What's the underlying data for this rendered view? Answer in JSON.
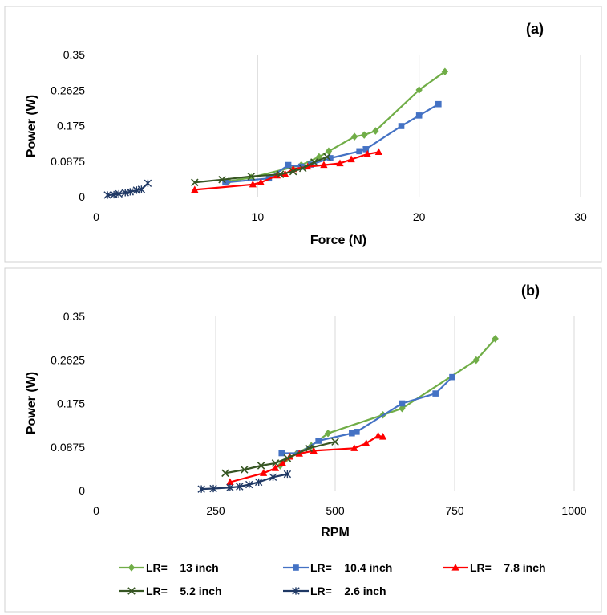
{
  "chart_data": [
    {
      "type": "line",
      "panel_label": "(a)",
      "xlabel": "Force (N)",
      "ylabel": "Power (W)",
      "xlim": [
        0,
        30
      ],
      "ylim": [
        0,
        0.35
      ],
      "x_ticks": [
        "0",
        "10",
        "20",
        "30"
      ],
      "y_ticks": [
        "0",
        "0.0875",
        "0.175",
        "0.2625",
        "0.35"
      ],
      "grid": "vertical",
      "series": [
        {
          "key": "lr13",
          "points": [
            [
              8.2,
              0.038
            ],
            [
              9.6,
              0.047
            ],
            [
              12.7,
              0.078
            ],
            [
              13.8,
              0.098
            ],
            [
              14.4,
              0.112
            ],
            [
              16.0,
              0.148
            ],
            [
              16.6,
              0.152
            ],
            [
              17.3,
              0.162
            ],
            [
              20.0,
              0.263
            ],
            [
              21.6,
              0.308
            ]
          ]
        },
        {
          "key": "lr104",
          "points": [
            [
              8.0,
              0.035
            ],
            [
              10.7,
              0.045
            ],
            [
              11.9,
              0.078
            ],
            [
              12.7,
              0.074
            ],
            [
              13.3,
              0.079
            ],
            [
              14.5,
              0.095
            ],
            [
              16.3,
              0.112
            ],
            [
              16.7,
              0.117
            ],
            [
              18.9,
              0.174
            ],
            [
              20.0,
              0.2
            ],
            [
              21.2,
              0.228
            ]
          ]
        },
        {
          "key": "lr78",
          "points": [
            [
              6.1,
              0.017
            ],
            [
              9.7,
              0.03
            ],
            [
              10.2,
              0.035
            ],
            [
              11.2,
              0.052
            ],
            [
              11.7,
              0.056
            ],
            [
              12.2,
              0.068
            ],
            [
              13.1,
              0.074
            ],
            [
              14.1,
              0.078
            ],
            [
              15.1,
              0.082
            ],
            [
              15.8,
              0.092
            ],
            [
              16.8,
              0.105
            ],
            [
              17.5,
              0.11
            ]
          ]
        },
        {
          "key": "lr52",
          "points": [
            [
              6.1,
              0.035
            ],
            [
              7.8,
              0.042
            ],
            [
              9.6,
              0.05
            ],
            [
              11.4,
              0.055
            ],
            [
              12.2,
              0.062
            ],
            [
              12.8,
              0.07
            ],
            [
              13.5,
              0.085
            ],
            [
              14.3,
              0.098
            ]
          ]
        },
        {
          "key": "lr26",
          "points": [
            [
              0.7,
              0.004
            ],
            [
              1.1,
              0.005
            ],
            [
              1.4,
              0.007
            ],
            [
              1.8,
              0.01
            ],
            [
              2.1,
              0.012
            ],
            [
              2.5,
              0.016
            ],
            [
              2.8,
              0.018
            ],
            [
              3.2,
              0.033
            ]
          ]
        }
      ]
    },
    {
      "type": "line",
      "panel_label": "(b)",
      "xlabel": "RPM",
      "ylabel": "Power (W)",
      "xlim": [
        0,
        1000
      ],
      "ylim": [
        0,
        0.35
      ],
      "x_ticks": [
        "0",
        "250",
        "500",
        "750",
        "1000"
      ],
      "y_ticks": [
        "0",
        "0.0875",
        "0.175",
        "0.2625",
        "0.35"
      ],
      "grid": "vertical",
      "series": [
        {
          "key": "lr13",
          "points": [
            [
              385,
              0.05
            ],
            [
              420,
              0.075
            ],
            [
              450,
              0.09
            ],
            [
              485,
              0.115
            ],
            [
              600,
              0.152
            ],
            [
              640,
              0.165
            ],
            [
              795,
              0.262
            ],
            [
              835,
              0.305
            ]
          ]
        },
        {
          "key": "lr104",
          "points": [
            [
              388,
              0.075
            ],
            [
              425,
              0.075
            ],
            [
              465,
              0.1
            ],
            [
              535,
              0.115
            ],
            [
              545,
              0.118
            ],
            [
              640,
              0.175
            ],
            [
              710,
              0.195
            ],
            [
              745,
              0.228
            ]
          ]
        },
        {
          "key": "lr78",
          "points": [
            [
              280,
              0.017
            ],
            [
              350,
              0.035
            ],
            [
              375,
              0.045
            ],
            [
              390,
              0.055
            ],
            [
              405,
              0.068
            ],
            [
              425,
              0.074
            ],
            [
              455,
              0.08
            ],
            [
              540,
              0.085
            ],
            [
              565,
              0.095
            ],
            [
              590,
              0.11
            ],
            [
              600,
              0.108
            ]
          ]
        },
        {
          "key": "lr52",
          "points": [
            [
              270,
              0.035
            ],
            [
              310,
              0.042
            ],
            [
              345,
              0.05
            ],
            [
              375,
              0.055
            ],
            [
              400,
              0.065
            ],
            [
              445,
              0.085
            ],
            [
              500,
              0.098
            ]
          ]
        },
        {
          "key": "lr26",
          "points": [
            [
              220,
              0.003
            ],
            [
              245,
              0.004
            ],
            [
              280,
              0.006
            ],
            [
              300,
              0.008
            ],
            [
              320,
              0.012
            ],
            [
              340,
              0.017
            ],
            [
              370,
              0.027
            ],
            [
              400,
              0.033
            ]
          ]
        }
      ]
    }
  ],
  "legend": [
    {
      "key": "lr13",
      "label": "LR=    13 inch",
      "color": "#70ad47",
      "marker": "diamond"
    },
    {
      "key": "lr104",
      "label": "LR=    10.4 inch",
      "color": "#4472c4",
      "marker": "square"
    },
    {
      "key": "lr78",
      "label": "LR=    7.8 inch",
      "color": "#ff0000",
      "marker": "triangle"
    },
    {
      "key": "lr52",
      "label": "LR=    5.2 inch",
      "color": "#375623",
      "marker": "x"
    },
    {
      "key": "lr26",
      "label": "LR=    2.6 inch",
      "color": "#1f3864",
      "marker": "star"
    }
  ]
}
